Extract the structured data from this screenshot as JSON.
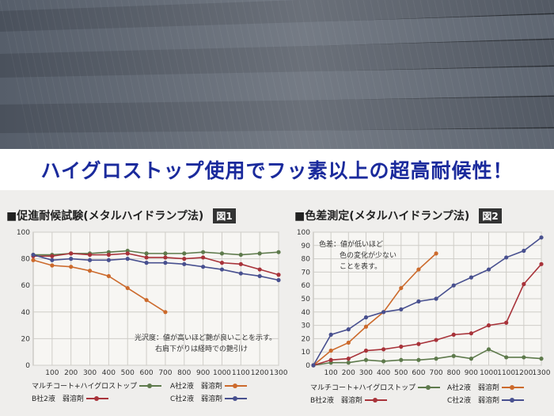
{
  "headline": "ハイグロストップ使用でフッ素以上の超高耐候性！",
  "chart_data": [
    {
      "type": "line",
      "title": "■促進耐候試験(メタルハイドランプ法)",
      "figure_label": "図1",
      "x": [
        0,
        100,
        200,
        300,
        400,
        500,
        600,
        700,
        800,
        900,
        1000,
        1100,
        1200,
        1300
      ],
      "xticks": [
        "100",
        "200",
        "300",
        "400",
        "500",
        "600",
        "700",
        "800",
        "900",
        "1000",
        "1100",
        "1200",
        "1300"
      ],
      "ylim": [
        0,
        100
      ],
      "yticks": [
        0,
        20,
        40,
        60,
        80,
        100
      ],
      "grid": true,
      "note": [
        "光沢度：値が高いほど艶が良いことを示す。",
        "右肩下がりは経時での艶引け"
      ],
      "series": [
        {
          "name": "マルチコート+ハイグロストップ",
          "color": "#5e7a4c",
          "values": [
            83,
            83,
            84,
            84,
            85,
            86,
            84,
            84,
            84,
            85,
            84,
            83,
            84,
            85
          ]
        },
        {
          "name": "A社2液　弱溶剤",
          "color": "#cc6a2c",
          "values": [
            79,
            75,
            74,
            71,
            67,
            58,
            49,
            40,
            null,
            null,
            null,
            null,
            null,
            null
          ]
        },
        {
          "name": "B社2液　弱溶剤",
          "color": "#a8333a",
          "values": [
            82,
            82,
            84,
            83,
            83,
            84,
            81,
            81,
            80,
            81,
            77,
            76,
            72,
            68
          ]
        },
        {
          "name": "C社2液　弱溶剤",
          "color": "#48508f",
          "values": [
            83,
            79,
            80,
            79,
            79,
            80,
            77,
            77,
            76,
            74,
            72,
            69,
            67,
            64
          ]
        }
      ]
    },
    {
      "type": "line",
      "title": "■色差測定(メタルハイドランプ法)",
      "figure_label": "図2",
      "x": [
        0,
        100,
        200,
        300,
        400,
        500,
        600,
        700,
        800,
        900,
        1000,
        1100,
        1200,
        1300
      ],
      "xticks": [
        "100",
        "200",
        "300",
        "400",
        "500",
        "600",
        "700",
        "800",
        "900",
        "1000",
        "1100",
        "1200",
        "1300"
      ],
      "ylim": [
        0,
        100
      ],
      "yticks": [
        0,
        10,
        20,
        30,
        40,
        50,
        60,
        70,
        80,
        90,
        100
      ],
      "grid": true,
      "note": [
        "色差：値が低いほど",
        "色の変化が少ない",
        "ことを表す。"
      ],
      "series": [
        {
          "name": "マルチコート+ハイグロストップ",
          "color": "#5e7a4c",
          "values": [
            0,
            2,
            2,
            4,
            3,
            4,
            4,
            5,
            7,
            5,
            12,
            6,
            6,
            5
          ]
        },
        {
          "name": "A社2液　弱溶剤",
          "color": "#cc6a2c",
          "values": [
            0,
            11,
            17,
            29,
            40,
            58,
            72,
            84,
            null,
            null,
            null,
            null,
            null,
            null
          ]
        },
        {
          "name": "B社2液　弱溶剤",
          "color": "#a8333a",
          "values": [
            0,
            4,
            5,
            11,
            12,
            14,
            16,
            19,
            23,
            24,
            30,
            32,
            61,
            76
          ]
        },
        {
          "name": "C社2液　弱溶剤",
          "color": "#48508f",
          "values": [
            0,
            23,
            27,
            36,
            40,
            42,
            48,
            50,
            60,
            66,
            72,
            81,
            86,
            96
          ]
        }
      ]
    }
  ],
  "legend_entries": [
    {
      "name": "マルチコート+ハイグロストップ",
      "color": "#5e7a4c"
    },
    {
      "name": "A社2液　弱溶剤",
      "color": "#cc6a2c"
    },
    {
      "name": "B社2液　弱溶剤",
      "color": "#a8333a"
    },
    {
      "name": "C社2液　弱溶剤",
      "color": "#48508f"
    }
  ]
}
